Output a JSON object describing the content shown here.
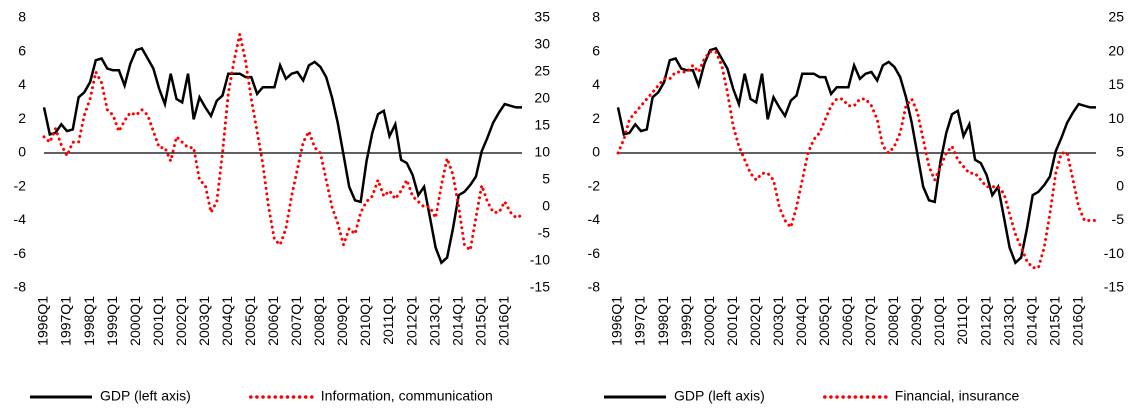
{
  "chart_data": [
    {
      "type": "line",
      "categories": [
        "1996Q1",
        null,
        null,
        null,
        "1997Q1",
        null,
        null,
        null,
        "1998Q1",
        null,
        null,
        null,
        "1999Q1",
        null,
        null,
        null,
        "2000Q1",
        null,
        null,
        null,
        "2001Q1",
        null,
        null,
        null,
        "2002Q1",
        null,
        null,
        null,
        "2003Q1",
        null,
        null,
        null,
        "2004Q1",
        null,
        null,
        null,
        "2005Q1",
        null,
        null,
        null,
        "2006Q1",
        null,
        null,
        null,
        "2007Q1",
        null,
        null,
        null,
        "2008Q1",
        null,
        null,
        null,
        "2009Q1",
        null,
        null,
        null,
        "2010Q1",
        null,
        null,
        null,
        "2011Q1",
        null,
        null,
        null,
        "2012Q1",
        null,
        null,
        null,
        "2013Q1",
        null,
        null,
        null,
        "2014Q1",
        null,
        null,
        null,
        "2015Q1",
        null,
        null,
        null,
        "2016Q1",
        null,
        null,
        null
      ],
      "series": [
        {
          "name": "GDP (left axis)",
          "color": "#000000",
          "dash": "solid",
          "values": [
            2.7,
            1.1,
            1.2,
            1.7,
            1.3,
            1.4,
            3.3,
            3.6,
            4.2,
            5.5,
            5.6,
            5.0,
            4.9,
            4.9,
            4.0,
            5.3,
            6.1,
            6.2,
            5.6,
            5.0,
            3.8,
            2.9,
            4.7,
            3.2,
            3.0,
            4.7,
            2.0,
            3.3,
            2.7,
            2.2,
            3.1,
            3.4,
            4.7,
            4.7,
            4.7,
            4.5,
            4.5,
            3.5,
            3.9,
            3.9,
            3.9,
            5.2,
            4.4,
            4.7,
            4.8,
            4.3,
            5.2,
            5.4,
            5.1,
            4.5,
            3.3,
            1.8,
            -0.1,
            -2.0,
            -2.8,
            -2.9,
            -0.5,
            1.2,
            2.3,
            2.5,
            1.0,
            1.7,
            -0.4,
            -0.6,
            -1.3,
            -2.5,
            -2.0,
            -3.8,
            -5.6,
            -6.5,
            -6.2,
            -4.5,
            -2.5,
            -2.3,
            -1.9,
            -1.4,
            0.1,
            0.9,
            1.8,
            2.4,
            2.9,
            2.8,
            2.7,
            2.7
          ]
        },
        {
          "name": "Information, communication",
          "color": "#ff0000",
          "dash": "dotted",
          "axis": "y2",
          "values": [
            13,
            12,
            14.5,
            11.5,
            9.5,
            12,
            12,
            17,
            20,
            25,
            23,
            18,
            17,
            14,
            16,
            17.5,
            17,
            18,
            17,
            14,
            11,
            11,
            8.5,
            13,
            12,
            11,
            11,
            5,
            4,
            -1,
            1,
            10,
            21,
            27,
            32,
            27,
            20,
            14,
            8,
            0,
            -6,
            -7,
            -4,
            2,
            7,
            12,
            14,
            11,
            10,
            5,
            0,
            -3,
            -7,
            -4,
            -5,
            -1,
            1,
            2,
            5,
            2,
            3,
            1.5,
            3,
            5,
            2,
            1,
            0,
            0,
            -2,
            4,
            9,
            6,
            0,
            -7,
            -8,
            -2,
            4,
            1,
            -1,
            -1,
            1,
            -1,
            -2,
            -1.5
          ]
        }
      ],
      "ylim": [
        -8,
        8
      ],
      "yticks": [
        -8,
        -6,
        -4,
        -2,
        0,
        2,
        4,
        6,
        8
      ],
      "y2lim": [
        -15,
        35
      ],
      "y2ticks": [
        -15,
        -10,
        -5,
        0,
        5,
        10,
        15,
        20,
        25,
        30,
        35
      ],
      "grid": false
    },
    {
      "type": "line",
      "categories": [
        "1996Q1",
        null,
        null,
        null,
        "1997Q1",
        null,
        null,
        null,
        "1998Q1",
        null,
        null,
        null,
        "1999Q1",
        null,
        null,
        null,
        "2000Q1",
        null,
        null,
        null,
        "2001Q1",
        null,
        null,
        null,
        "2002Q1",
        null,
        null,
        null,
        "2003Q1",
        null,
        null,
        null,
        "2004Q1",
        null,
        null,
        null,
        "2005Q1",
        null,
        null,
        null,
        "2006Q1",
        null,
        null,
        null,
        "2007Q1",
        null,
        null,
        null,
        "2008Q1",
        null,
        null,
        null,
        "2009Q1",
        null,
        null,
        null,
        "2010Q1",
        null,
        null,
        null,
        "2011Q1",
        null,
        null,
        null,
        "2012Q1",
        null,
        null,
        null,
        "2013Q1",
        null,
        null,
        null,
        "2014Q1",
        null,
        null,
        null,
        "2015Q1",
        null,
        null,
        null,
        "2016Q1",
        null,
        null,
        null
      ],
      "series": [
        {
          "name": "GDP (left axis)",
          "color": "#000000",
          "dash": "solid",
          "values": [
            2.7,
            1.1,
            1.2,
            1.7,
            1.3,
            1.4,
            3.3,
            3.6,
            4.2,
            5.5,
            5.6,
            5.0,
            4.9,
            4.9,
            4.0,
            5.3,
            6.1,
            6.2,
            5.6,
            5.0,
            3.8,
            2.9,
            4.7,
            3.2,
            3.0,
            4.7,
            2.0,
            3.3,
            2.7,
            2.2,
            3.1,
            3.4,
            4.7,
            4.7,
            4.7,
            4.5,
            4.5,
            3.5,
            3.9,
            3.9,
            3.9,
            5.2,
            4.4,
            4.7,
            4.8,
            4.3,
            5.2,
            5.4,
            5.1,
            4.5,
            3.3,
            1.8,
            -0.1,
            -2.0,
            -2.8,
            -2.9,
            -0.5,
            1.2,
            2.3,
            2.5,
            1.0,
            1.7,
            -0.4,
            -0.6,
            -1.3,
            -2.5,
            -2.0,
            -3.8,
            -5.6,
            -6.5,
            -6.2,
            -4.5,
            -2.5,
            -2.3,
            -1.9,
            -1.4,
            0.1,
            0.9,
            1.8,
            2.4,
            2.9,
            2.8,
            2.7,
            2.7
          ]
        },
        {
          "name": "Financial, insurance",
          "color": "#ff0000",
          "dash": "dotted",
          "axis": "y2",
          "values": [
            5,
            7,
            10,
            11,
            12,
            13,
            14,
            15,
            16,
            16,
            17,
            17,
            17,
            18,
            17,
            19,
            20,
            20,
            18,
            14,
            9,
            6,
            4,
            2,
            1,
            2,
            2,
            1,
            -3,
            -5,
            -6,
            -3,
            1,
            5,
            7,
            8,
            10,
            12,
            13,
            13,
            12,
            12,
            13,
            13,
            12,
            10,
            6,
            5,
            6,
            8,
            12,
            13,
            11,
            7,
            3,
            1,
            3,
            5,
            6,
            4,
            3,
            2,
            2,
            1,
            0,
            0,
            0,
            -1,
            -4,
            -7,
            -9,
            -11,
            -12,
            -12,
            -9,
            -4,
            2,
            5,
            5,
            1,
            -3,
            -5,
            -5,
            -5
          ]
        }
      ],
      "ylim": [
        -8,
        8
      ],
      "yticks": [
        -8,
        -6,
        -4,
        -2,
        0,
        2,
        4,
        6,
        8
      ],
      "y2lim": [
        -15,
        25
      ],
      "y2ticks": [
        -15,
        -10,
        -5,
        0,
        5,
        10,
        15,
        20,
        25
      ],
      "grid": false
    }
  ]
}
